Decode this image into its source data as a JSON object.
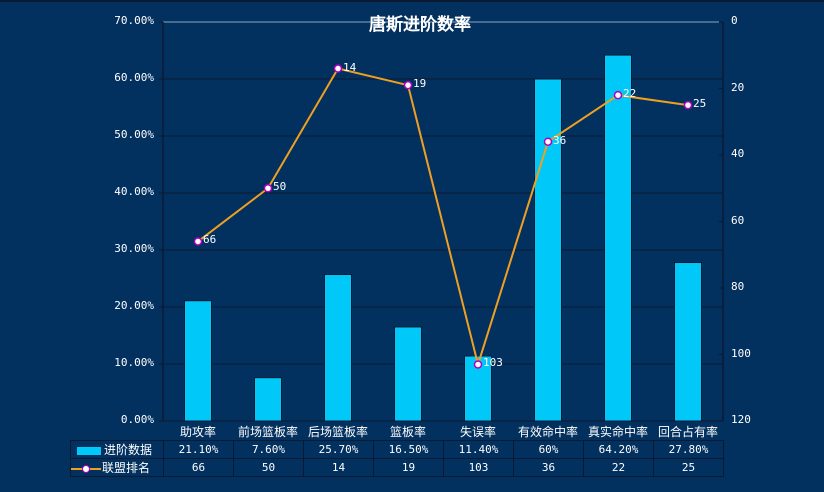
{
  "chart_data": {
    "type": "bar+line",
    "title": "唐斯进阶数率",
    "categories": [
      "助攻率",
      "前场篮板率",
      "后场篮板率",
      "篮板率",
      "失误率",
      "有效命中率",
      "真实命中率",
      "回合占有率"
    ],
    "series": [
      {
        "name": "进阶数据",
        "type": "bar",
        "axis": "left",
        "color": "#00c8f8",
        "values": [
          21.1,
          7.6,
          25.7,
          16.5,
          11.4,
          60,
          64.2,
          27.8
        ],
        "display": [
          "21.10%",
          "7.60%",
          "25.70%",
          "16.50%",
          "11.40%",
          "60%",
          "64.20%",
          "27.80%"
        ]
      },
      {
        "name": "联盟排名",
        "type": "line",
        "axis": "right",
        "color": "#f0a020",
        "marker_fill": "#ffffff",
        "marker_edge": "#b000c0",
        "values": [
          66,
          50,
          14,
          19,
          103,
          36,
          22,
          25
        ],
        "display": [
          "66",
          "50",
          "14",
          "19",
          "103",
          "36",
          "22",
          "25"
        ]
      }
    ],
    "left_axis": {
      "ylim": [
        0,
        70
      ],
      "ticks": [
        "0.00%",
        "10.00%",
        "20.00%",
        "30.00%",
        "40.00%",
        "50.00%",
        "60.00%",
        "70.00%"
      ]
    },
    "right_axis": {
      "ylim": [
        120,
        0
      ],
      "inverted": true,
      "ticks": [
        "0",
        "20",
        "40",
        "60",
        "80",
        "100",
        "120"
      ]
    },
    "grid": true,
    "legend_position": "data-table-bottom",
    "xlabel": "",
    "ylabel": ""
  },
  "colors": {
    "background": "#02305f",
    "bar": "#00c8f8",
    "line": "#f0a020",
    "marker_edge": "#b000c0",
    "gridline": "#0b1a33",
    "text": "#ffffff"
  }
}
